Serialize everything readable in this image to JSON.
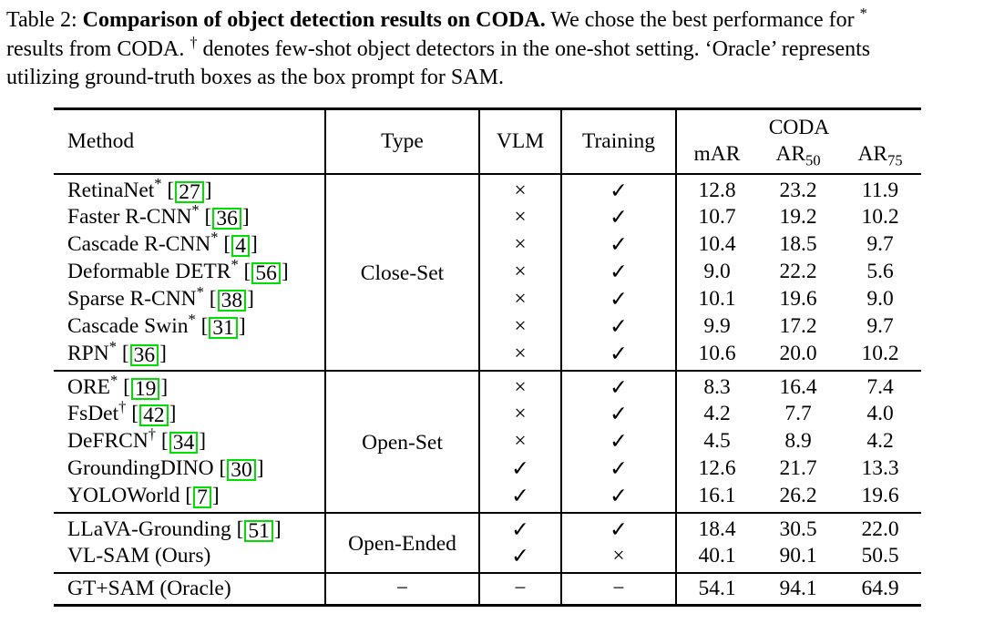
{
  "page": {
    "background": "#ffffff",
    "text_color": "#000000",
    "citation_box_color": "#00e000"
  },
  "caption": {
    "segments": [
      {
        "text": "Table 2: "
      },
      {
        "text": "Comparison of object detection results on CODA.",
        "bold": true
      },
      {
        "text": " We chose the best performance for "
      },
      {
        "text": "*",
        "sup": true
      },
      {
        "br": true
      },
      {
        "text": "results from CODA. "
      },
      {
        "text": "†",
        "sup": true
      },
      {
        "text": " denotes few-shot object detectors in the one-shot setting. ‘Oracle’ represents"
      },
      {
        "br": true
      },
      {
        "text": "utilizing ground-truth boxes as the box prompt for SAM."
      }
    ]
  },
  "table": {
    "header": {
      "method": "Method",
      "type": "Type",
      "vlm": "VLM",
      "training": "Training",
      "group": "CODA",
      "sub_columns": [
        {
          "base": "mAR",
          "sub": ""
        },
        {
          "base": "AR",
          "sub": "50"
        },
        {
          "base": "AR",
          "sub": "75"
        }
      ]
    },
    "sections": [
      {
        "type_label": "Close-Set",
        "rows": [
          {
            "name": "RetinaNet",
            "marker": "*",
            "cite": "27",
            "vlm": "×",
            "training": "✓",
            "mar": "12.8",
            "ar50": "23.2",
            "ar75": "11.9"
          },
          {
            "name": "Faster R-CNN",
            "marker": "*",
            "cite": "36",
            "vlm": "×",
            "training": "✓",
            "mar": "10.7",
            "ar50": "19.2",
            "ar75": "10.2"
          },
          {
            "name": "Cascade R-CNN",
            "marker": "*",
            "cite": "4",
            "vlm": "×",
            "training": "✓",
            "mar": "10.4",
            "ar50": "18.5",
            "ar75": "9.7"
          },
          {
            "name": "Deformable DETR",
            "marker": "*",
            "cite": "56",
            "vlm": "×",
            "training": "✓",
            "mar": "9.0",
            "ar50": "22.2",
            "ar75": "5.6"
          },
          {
            "name": "Sparse R-CNN",
            "marker": "*",
            "cite": "38",
            "vlm": "×",
            "training": "✓",
            "mar": "10.1",
            "ar50": "19.6",
            "ar75": "9.0"
          },
          {
            "name": "Cascade Swin",
            "marker": "*",
            "cite": "31",
            "vlm": "×",
            "training": "✓",
            "mar": "9.9",
            "ar50": "17.2",
            "ar75": "9.7"
          },
          {
            "name": "RPN",
            "marker": "*",
            "cite": "36",
            "vlm": "×",
            "training": "✓",
            "mar": "10.6",
            "ar50": "20.0",
            "ar75": "10.2"
          }
        ]
      },
      {
        "type_label": "Open-Set",
        "rows": [
          {
            "name": "ORE",
            "marker": "*",
            "cite": "19",
            "vlm": "×",
            "training": "✓",
            "mar": "8.3",
            "ar50": "16.4",
            "ar75": "7.4"
          },
          {
            "name": "FsDet",
            "marker": "†",
            "cite": "42",
            "vlm": "×",
            "training": "✓",
            "mar": "4.2",
            "ar50": "7.7",
            "ar75": "4.0"
          },
          {
            "name": "DeFRCN",
            "marker": "†",
            "cite": "34",
            "vlm": "×",
            "training": "✓",
            "mar": "4.5",
            "ar50": "8.9",
            "ar75": "4.2"
          },
          {
            "name": "GroundingDINO",
            "marker": "",
            "cite": "30",
            "vlm": "✓",
            "training": "✓",
            "mar": "12.6",
            "ar50": "21.7",
            "ar75": "13.3"
          },
          {
            "name": "YOLOWorld",
            "marker": "",
            "cite": "7",
            "vlm": "✓",
            "training": "✓",
            "mar": "16.1",
            "ar50": "26.2",
            "ar75": "19.6"
          }
        ]
      },
      {
        "type_label": "Open-Ended",
        "rows": [
          {
            "name": "LLaVA-Grounding",
            "marker": "",
            "cite": "51",
            "vlm": "✓",
            "training": "✓",
            "mar": "18.4",
            "ar50": "30.5",
            "ar75": "22.0"
          },
          {
            "name": "VL-SAM (Ours)",
            "marker": "",
            "cite": null,
            "vlm": "✓",
            "training": "×",
            "mar": "40.1",
            "ar50": "90.1",
            "ar75": "50.5"
          }
        ]
      },
      {
        "type_label": "−",
        "rows": [
          {
            "name": "GT+SAM (Oracle)",
            "marker": "",
            "cite": null,
            "vlm": "−",
            "training": "−",
            "mar": "54.1",
            "ar50": "94.1",
            "ar75": "64.9"
          }
        ]
      }
    ]
  }
}
